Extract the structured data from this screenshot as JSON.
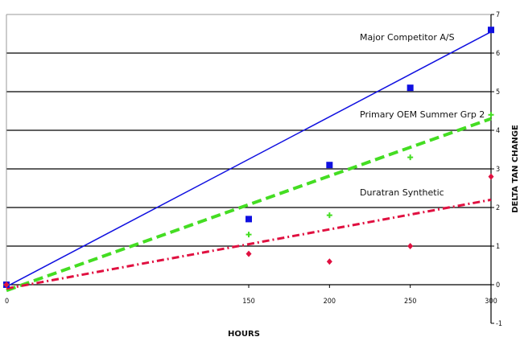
{
  "chart_data": {
    "type": "scatter",
    "title": "",
    "xlabel": "HOURS",
    "ylabel": "DELTA TAN CHANGE",
    "x_ticks": [
      0,
      150,
      200,
      250,
      300
    ],
    "y_ticks": [
      -1,
      0,
      1,
      2,
      3,
      4,
      5,
      6,
      7
    ],
    "xlim": [
      0,
      300
    ],
    "ylim": [
      -1,
      7
    ],
    "grid": "horizontal",
    "y_axis_side": "right",
    "series": [
      {
        "name": "Major Competitor A/S",
        "color": "#1010e0",
        "marker": "square",
        "line_style": "solid",
        "x": [
          0,
          150,
          200,
          250,
          300
        ],
        "y": [
          0.0,
          1.7,
          3.1,
          5.1,
          6.6
        ],
        "trendline": [
          [
            0,
            -0.05
          ],
          [
            300,
            6.55
          ]
        ]
      },
      {
        "name": "Primary OEM Summer Grp 2",
        "color": "#44dd22",
        "marker": "plus",
        "line_style": "dashed",
        "x": [
          0,
          150,
          200,
          250,
          300
        ],
        "y": [
          0.0,
          1.3,
          1.8,
          3.3,
          4.4
        ],
        "trendline": [
          [
            0,
            -0.15
          ],
          [
            300,
            4.3
          ]
        ]
      },
      {
        "name": "Duratran Synthetic",
        "color": "#e01040",
        "marker": "diamond",
        "line_style": "dashdot",
        "x": [
          0,
          150,
          200,
          250,
          300
        ],
        "y": [
          0.0,
          0.8,
          0.6,
          1.0,
          2.8
        ],
        "trendline": [
          [
            0,
            -0.1
          ],
          [
            300,
            2.2
          ]
        ]
      }
    ]
  }
}
